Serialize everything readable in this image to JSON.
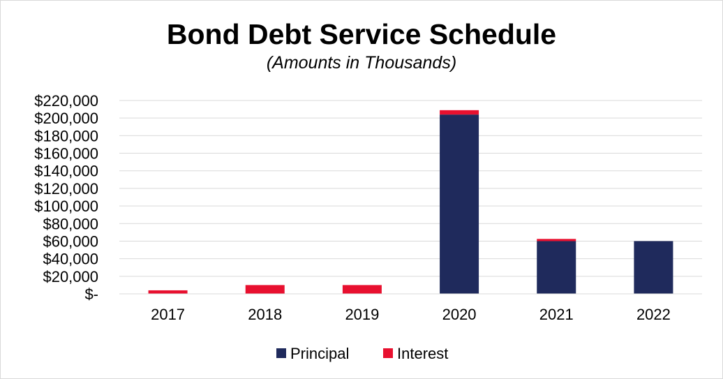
{
  "chart_data": {
    "type": "bar",
    "stacked": true,
    "title": "Bond Debt Service Schedule",
    "subtitle": "(Amounts in Thousands)",
    "xlabel": "",
    "ylabel": "",
    "categories": [
      "2017",
      "2018",
      "2019",
      "2020",
      "2021",
      "2022"
    ],
    "series": [
      {
        "name": "Principal",
        "color": "#1f2a5c",
        "values": [
          0,
          0,
          0,
          204000,
          60000,
          60000
        ]
      },
      {
        "name": "Interest",
        "color": "#e8102f",
        "values": [
          4000,
          10000,
          10000,
          5000,
          2500,
          0
        ]
      }
    ],
    "ylim": [
      0,
      220000
    ],
    "yticks": [
      0,
      20000,
      40000,
      60000,
      80000,
      100000,
      120000,
      140000,
      160000,
      180000,
      200000,
      220000
    ],
    "ytick_labels": [
      "$-",
      "$20,000",
      "$40,000",
      "$60,000",
      "$80,000",
      "$100,000",
      "$120,000",
      "$140,000",
      "$160,000",
      "$180,000",
      "$200,000",
      "$220,000"
    ],
    "grid": true,
    "legend_position": "bottom"
  }
}
